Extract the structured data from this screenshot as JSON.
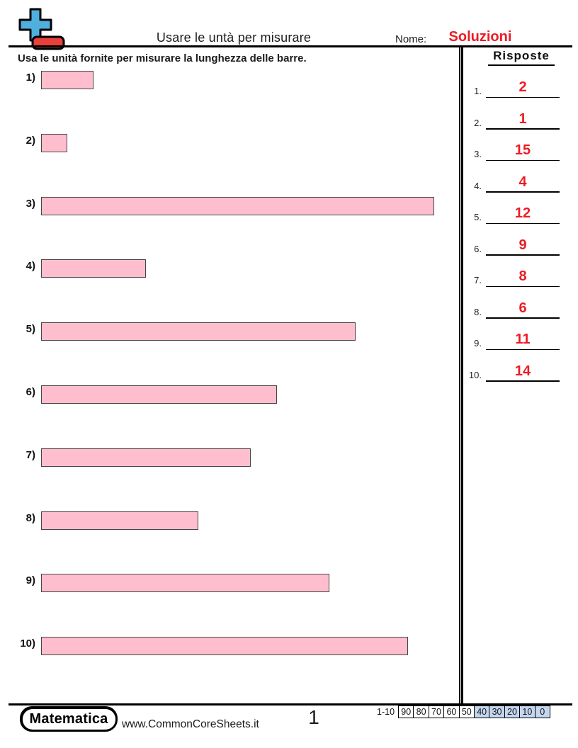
{
  "header": {
    "worksheet_title": "Usare le untà per misurare",
    "name_label": "Nome:",
    "name_value": "Soluzioni"
  },
  "instruction": "Usa le unità fornite per misurare la lunghezza delle barre.",
  "problems": [
    {
      "label": "1)",
      "length_units": 2
    },
    {
      "label": "2)",
      "length_units": 1
    },
    {
      "label": "3)",
      "length_units": 15
    },
    {
      "label": "4)",
      "length_units": 4
    },
    {
      "label": "5)",
      "length_units": 12
    },
    {
      "label": "6)",
      "length_units": 9
    },
    {
      "label": "7)",
      "length_units": 8
    },
    {
      "label": "8)",
      "length_units": 6
    },
    {
      "label": "9)",
      "length_units": 11
    },
    {
      "label": "10)",
      "length_units": 14
    }
  ],
  "answers": {
    "title": "Risposte",
    "items": [
      {
        "number": "1.",
        "value": "2"
      },
      {
        "number": "2.",
        "value": "1"
      },
      {
        "number": "3.",
        "value": "15"
      },
      {
        "number": "4.",
        "value": "4"
      },
      {
        "number": "5.",
        "value": "12"
      },
      {
        "number": "6.",
        "value": "9"
      },
      {
        "number": "7.",
        "value": "8"
      },
      {
        "number": "8.",
        "value": "6"
      },
      {
        "number": "9.",
        "value": "11"
      },
      {
        "number": "10.",
        "value": "14"
      }
    ]
  },
  "footer": {
    "brand": "Matematica",
    "website": "www.CommonCoreSheets.it",
    "page_number": "1",
    "score_table": {
      "range_label": "1-10",
      "cells": [
        {
          "label": "90",
          "highlighted": false
        },
        {
          "label": "80",
          "highlighted": false
        },
        {
          "label": "70",
          "highlighted": false
        },
        {
          "label": "60",
          "highlighted": false
        },
        {
          "label": "50",
          "highlighted": false
        },
        {
          "label": "40",
          "highlighted": true
        },
        {
          "label": "30",
          "highlighted": true
        },
        {
          "label": "20",
          "highlighted": true
        },
        {
          "label": "10",
          "highlighted": true
        },
        {
          "label": "0",
          "highlighted": true
        }
      ]
    }
  },
  "colors": {
    "answer-red": "#ed1c24",
    "bar-fill": "#ffbecd",
    "bar-border": "#454545",
    "score-highlight": "#c3d7ef",
    "logo-blue": "#4fb0dd",
    "logo-red": "#e8403a"
  }
}
